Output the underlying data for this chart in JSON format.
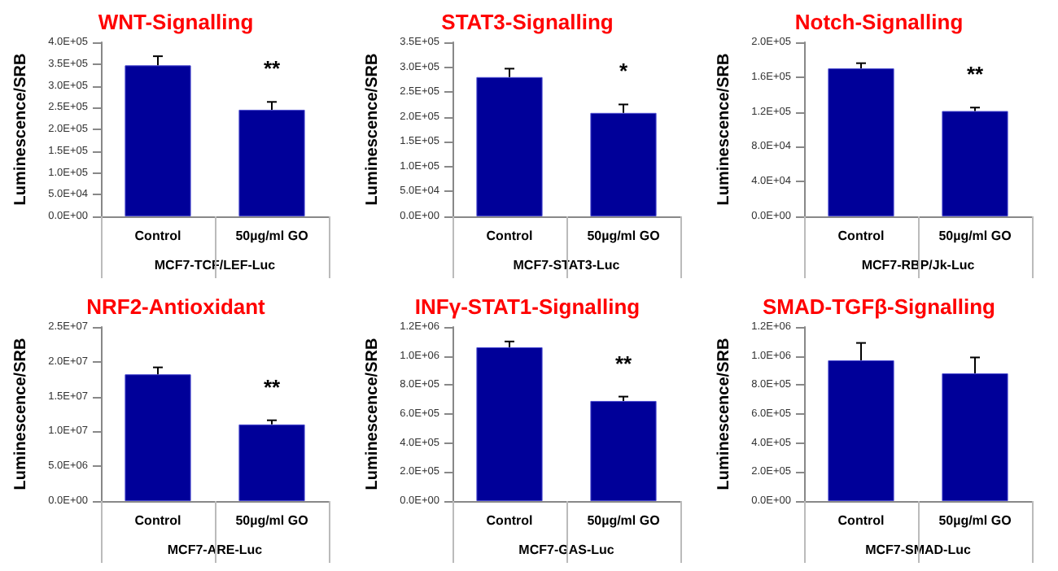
{
  "chart_data": [
    {
      "type": "bar",
      "title": "WNT-Signalling",
      "xlabel": "MCF7-TCF/LEF-Luc",
      "ylabel": "Luminescence/SRB",
      "categories": [
        "Control",
        "50µg/ml GO"
      ],
      "values": [
        347000,
        245000
      ],
      "errors": [
        [
          347000,
          368000
        ],
        [
          245000,
          263000
        ]
      ],
      "color": "#000099",
      "ylim": [
        0,
        400000
      ],
      "yticks": [
        {
          "value": 0,
          "label": "0.0E+00"
        },
        {
          "value": 50000,
          "label": "5.0E+04"
        },
        {
          "value": 100000,
          "label": "1.0E+05"
        },
        {
          "value": 150000,
          "label": "1.5E+05"
        },
        {
          "value": 200000,
          "label": "2.0E+05"
        },
        {
          "value": 250000,
          "label": "2.5E+05"
        },
        {
          "value": 300000,
          "label": "3.0E+05"
        },
        {
          "value": 350000,
          "label": "3.5E+05"
        },
        {
          "value": 400000,
          "label": "4.0E+05"
        }
      ],
      "annotations": [
        "**"
      ],
      "grid": false
    },
    {
      "type": "bar",
      "title": "STAT3-Signalling",
      "xlabel": "MCF7-STAT3-Luc",
      "ylabel": "Luminescence/SRB",
      "categories": [
        "Control",
        "50µg/ml GO"
      ],
      "values": [
        280000,
        208000
      ],
      "errors": [
        [
          280000,
          297000
        ],
        [
          208000,
          225000
        ]
      ],
      "color": "#000099",
      "ylim": [
        0,
        350000
      ],
      "yticks": [
        {
          "value": 0,
          "label": "0.0E+00"
        },
        {
          "value": 50000,
          "label": "5.0E+04"
        },
        {
          "value": 100000,
          "label": "1.0E+05"
        },
        {
          "value": 150000,
          "label": "1.5E+05"
        },
        {
          "value": 200000,
          "label": "2.0E+05"
        },
        {
          "value": 250000,
          "label": "2.5E+05"
        },
        {
          "value": 300000,
          "label": "3.0E+05"
        },
        {
          "value": 350000,
          "label": "3.5E+05"
        }
      ],
      "annotations": [
        "*"
      ],
      "grid": false
    },
    {
      "type": "bar",
      "title": "Notch-Signalling",
      "xlabel": "MCF7-RBP/Jk-Luc",
      "ylabel": "Luminescence/SRB",
      "categories": [
        "Control",
        "50µg/ml GO"
      ],
      "values": [
        170000,
        121000
      ],
      "errors": [
        [
          170000,
          176000
        ],
        [
          121000,
          125000
        ]
      ],
      "color": "#000099",
      "ylim": [
        0,
        200000
      ],
      "yticks": [
        {
          "value": 0,
          "label": "0.0E+00"
        },
        {
          "value": 40000,
          "label": "4.0E+04"
        },
        {
          "value": 80000,
          "label": "8.0E+04"
        },
        {
          "value": 120000,
          "label": "1.2E+05"
        },
        {
          "value": 160000,
          "label": "1.6E+05"
        },
        {
          "value": 200000,
          "label": "2.0E+05"
        }
      ],
      "annotations": [
        "**"
      ],
      "grid": false
    },
    {
      "type": "bar",
      "title": "NRF2-Antioxidant",
      "xlabel": "MCF7-ARE-Luc",
      "ylabel": "Luminescence/SRB",
      "categories": [
        "Control",
        "50µg/ml GO"
      ],
      "values": [
        18200000,
        11000000
      ],
      "errors": [
        [
          18200000,
          19200000
        ],
        [
          11000000,
          11600000
        ]
      ],
      "color": "#000099",
      "ylim": [
        0,
        25000000
      ],
      "yticks": [
        {
          "value": 0,
          "label": "0.0E+00"
        },
        {
          "value": 5000000,
          "label": "5.0E+06"
        },
        {
          "value": 10000000,
          "label": "1.0E+07"
        },
        {
          "value": 15000000,
          "label": "1.5E+07"
        },
        {
          "value": 20000000,
          "label": "2.0E+07"
        },
        {
          "value": 25000000,
          "label": "2.5E+07"
        }
      ],
      "annotations": [
        "**"
      ],
      "grid": false
    },
    {
      "type": "bar",
      "title": "INFγ-STAT1-Signalling",
      "xlabel": "MCF7-GAS-Luc",
      "ylabel": "Luminescence/SRB",
      "categories": [
        "Control",
        "50µg/ml GO"
      ],
      "values": [
        1060000,
        690000
      ],
      "errors": [
        [
          1060000,
          1100000
        ],
        [
          690000,
          720000
        ]
      ],
      "color": "#000099",
      "ylim": [
        0,
        1200000
      ],
      "yticks": [
        {
          "value": 0,
          "label": "0.0E+00"
        },
        {
          "value": 200000,
          "label": "2.0E+05"
        },
        {
          "value": 400000,
          "label": "4.0E+05"
        },
        {
          "value": 600000,
          "label": "6.0E+05"
        },
        {
          "value": 800000,
          "label": "8.0E+05"
        },
        {
          "value": 1000000,
          "label": "1.0E+06"
        },
        {
          "value": 1200000,
          "label": "1.2E+06"
        }
      ],
      "annotations": [
        "**"
      ],
      "grid": false
    },
    {
      "type": "bar",
      "title": "SMAD-TGFβ-Signalling",
      "xlabel": "MCF7-SMAD-Luc",
      "ylabel": "Luminescence/SRB",
      "categories": [
        "Control",
        "50µg/ml GO"
      ],
      "values": [
        970000,
        880000
      ],
      "errors": [
        [
          970000,
          1090000
        ],
        [
          880000,
          990000
        ]
      ],
      "color": "#000099",
      "ylim": [
        0,
        1200000
      ],
      "yticks": [
        {
          "value": 0,
          "label": "0.0E+00"
        },
        {
          "value": 200000,
          "label": "2.0E+05"
        },
        {
          "value": 400000,
          "label": "4.0E+05"
        },
        {
          "value": 600000,
          "label": "6.0E+05"
        },
        {
          "value": 800000,
          "label": "8.0E+05"
        },
        {
          "value": 1000000,
          "label": "1.0E+06"
        },
        {
          "value": 1200000,
          "label": "1.2E+06"
        }
      ],
      "grid": false
    }
  ]
}
